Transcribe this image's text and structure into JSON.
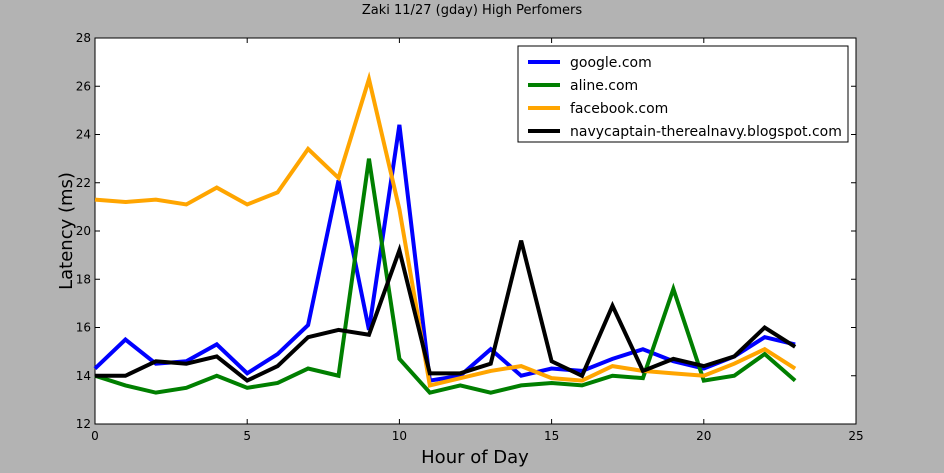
{
  "chart_data": {
    "type": "line",
    "title": "Zaki 11/27 (gday) High Perfomers",
    "xlabel": "Hour of Day",
    "ylabel": "Latency (ms)",
    "xlim": [
      0,
      25
    ],
    "ylim": [
      12,
      28
    ],
    "xticks": [
      0,
      5,
      10,
      15,
      20,
      25
    ],
    "yticks": [
      12,
      14,
      16,
      18,
      20,
      22,
      24,
      26,
      28
    ],
    "grid": false,
    "legend_position": "top-right",
    "x": [
      0,
      1,
      2,
      3,
      4,
      5,
      6,
      7,
      8,
      9,
      10,
      11,
      12,
      13,
      14,
      15,
      16,
      17,
      18,
      19,
      20,
      21,
      22,
      23
    ],
    "series": [
      {
        "name": "google.com",
        "color": "#0000ff",
        "values": [
          14.3,
          15.5,
          14.5,
          14.6,
          15.3,
          14.1,
          14.9,
          16.1,
          22.1,
          15.9,
          24.4,
          13.8,
          14.0,
          15.1,
          14.0,
          14.3,
          14.2,
          14.7,
          15.1,
          14.6,
          14.3,
          14.8,
          15.6,
          15.3
        ]
      },
      {
        "name": "aline.com",
        "color": "#007f00",
        "values": [
          14.0,
          13.6,
          13.3,
          13.5,
          14.0,
          13.5,
          13.7,
          14.3,
          14.0,
          23.0,
          14.7,
          13.3,
          13.6,
          13.3,
          13.6,
          13.7,
          13.6,
          14.0,
          13.9,
          17.6,
          13.8,
          14.0,
          14.9,
          13.8
        ]
      },
      {
        "name": "facebook.com",
        "color": "#ffa500",
        "values": [
          21.3,
          21.2,
          21.3,
          21.1,
          21.8,
          21.1,
          21.6,
          23.4,
          22.2,
          26.3,
          20.9,
          13.6,
          13.9,
          14.2,
          14.4,
          13.9,
          13.8,
          14.4,
          14.2,
          14.1,
          14.0,
          14.5,
          15.1,
          14.3
        ]
      },
      {
        "name": "navycaptain-therealnavy.blogspot.com",
        "color": "#000000",
        "values": [
          14.0,
          14.0,
          14.6,
          14.5,
          14.8,
          13.8,
          14.4,
          15.6,
          15.9,
          15.7,
          19.2,
          14.1,
          14.1,
          14.5,
          19.6,
          14.6,
          14.0,
          16.9,
          14.2,
          14.7,
          14.4,
          14.8,
          16.0,
          15.2
        ]
      }
    ]
  }
}
